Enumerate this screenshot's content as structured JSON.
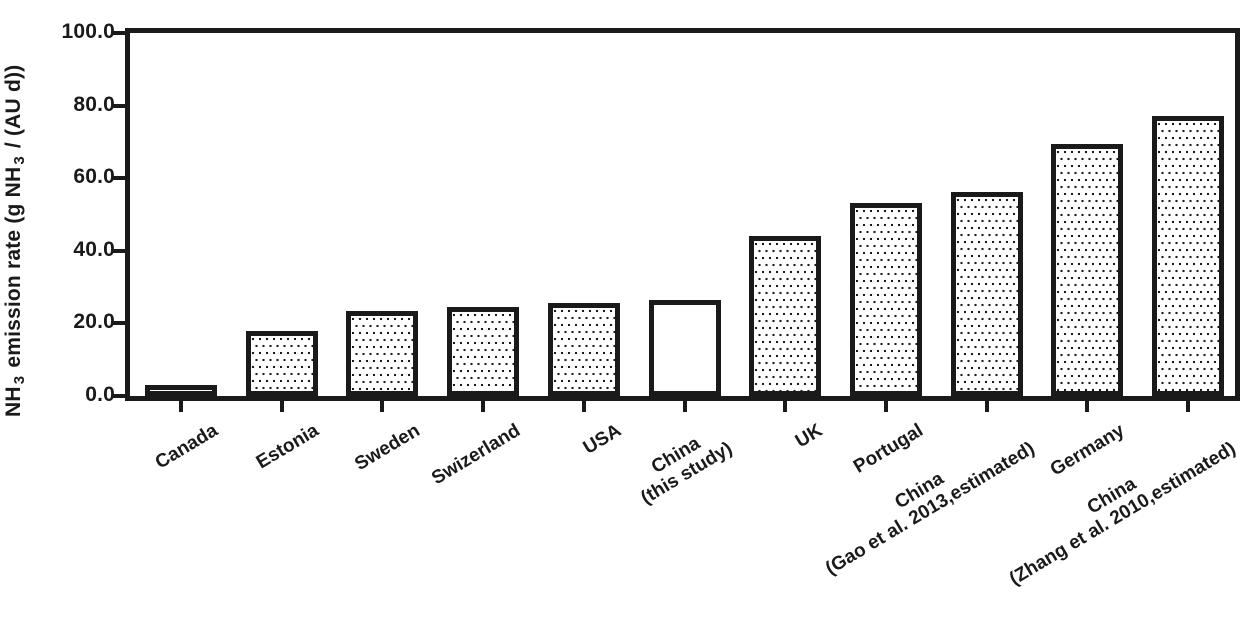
{
  "figure": {
    "background_color": "#ffffff",
    "ink_color": "#1a1a1a"
  },
  "y_axis": {
    "label_full": "NH3 emission rate (g NH3 / (AU d))",
    "label_parts": {
      "p1": "NH",
      "sub1": "3",
      "p2": " emission rate (g NH",
      "sub2": "3",
      "p3": " / (AU d))"
    },
    "ticks": [
      "0.0",
      "20.0",
      "40.0",
      "60.0",
      "80.0",
      "100.0"
    ],
    "min": 0,
    "max": 100
  },
  "chart_data": {
    "type": "bar",
    "title": "",
    "xlabel": "",
    "ylabel": "NH3 emission rate (g NH3 / (AU d))",
    "ylim": [
      0,
      100
    ],
    "ytick_interval": 20,
    "grid": false,
    "legend": false,
    "frame": "full-box",
    "bar_fill": "white with black stipple dots, black outline; 'China (this study)' bar is plain white",
    "categories": [
      "Canada",
      "Estonia",
      "Sweden",
      "Swizerland",
      "USA",
      "China (this study)",
      "UK",
      "Portugal",
      "China (Gao et al. 2013,estimated)",
      "Germany",
      "China (Zhang et al. 2010,estimated)"
    ],
    "values": [
      3.0,
      17.8,
      23.4,
      24.6,
      25.7,
      26.5,
      44.2,
      53.2,
      56.3,
      69.5,
      77.1
    ],
    "items": [
      {
        "label_lines": [
          "Canada"
        ],
        "value": 3.0,
        "pattern": "dots"
      },
      {
        "label_lines": [
          "Estonia"
        ],
        "value": 17.8,
        "pattern": "dots"
      },
      {
        "label_lines": [
          "Sweden"
        ],
        "value": 23.4,
        "pattern": "dots"
      },
      {
        "label_lines": [
          "Swizerland"
        ],
        "value": 24.6,
        "pattern": "dots"
      },
      {
        "label_lines": [
          "USA"
        ],
        "value": 25.7,
        "pattern": "dots"
      },
      {
        "label_lines": [
          "China",
          "(this study)"
        ],
        "value": 26.5,
        "pattern": "plain"
      },
      {
        "label_lines": [
          "UK"
        ],
        "value": 44.2,
        "pattern": "dots"
      },
      {
        "label_lines": [
          "Portugal"
        ],
        "value": 53.2,
        "pattern": "dots"
      },
      {
        "label_lines": [
          "China",
          "(Gao et al. 2013,estimated)"
        ],
        "value": 56.3,
        "pattern": "dots"
      },
      {
        "label_lines": [
          "Germany"
        ],
        "value": 69.5,
        "pattern": "dots"
      },
      {
        "label_lines": [
          "China",
          "(Zhang et al. 2010,estimated)"
        ],
        "value": 77.1,
        "pattern": "dots"
      }
    ]
  }
}
